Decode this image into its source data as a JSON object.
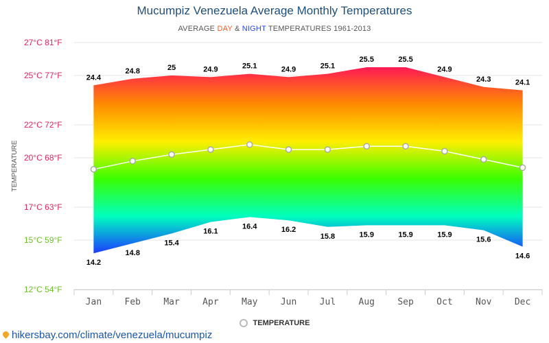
{
  "chart_data": {
    "type": "area",
    "title": "Mucumpiz Venezuela Average Monthly Temperatures",
    "subtitle": {
      "prefix": "AVERAGE",
      "day": "DAY",
      "amp": "&",
      "night": "NIGHT",
      "suffix": "TEMPERATURES 1961-2013"
    },
    "ylabel": "TEMPERATURE",
    "categories": [
      "Jan",
      "Feb",
      "Mar",
      "Apr",
      "May",
      "Jun",
      "Jul",
      "Aug",
      "Sep",
      "Oct",
      "Nov",
      "Dec"
    ],
    "ylim": [
      12,
      27
    ],
    "y_ticks": [
      {
        "value": 27,
        "label": "27°C 81°F",
        "color": "#e0245e"
      },
      {
        "value": 25,
        "label": "25°C 77°F",
        "color": "#e0245e"
      },
      {
        "value": 22,
        "label": "22°C 72°F",
        "color": "#e0245e"
      },
      {
        "value": 20,
        "label": "20°C 68°F",
        "color": "#e0245e"
      },
      {
        "value": 17,
        "label": "17°C 63°F",
        "color": "#e0245e"
      },
      {
        "value": 15,
        "label": "15°C 59°F",
        "color": "#6cbf2a"
      },
      {
        "value": 12,
        "label": "12°C 54°F",
        "color": "#6cbf2a"
      }
    ],
    "series": [
      {
        "name": "Day",
        "values": [
          24.4,
          24.8,
          25,
          24.9,
          25.1,
          24.9,
          25.1,
          25.5,
          25.5,
          24.9,
          24.3,
          24.1
        ],
        "labels": [
          "24.4",
          "24.8",
          "25",
          "24.9",
          "25.1",
          "24.9",
          "25.1",
          "25.5",
          "25.5",
          "24.9",
          "24.3",
          "24.1"
        ]
      },
      {
        "name": "Night",
        "values": [
          14.2,
          14.8,
          15.4,
          16.1,
          16.4,
          16.2,
          15.8,
          15.9,
          15.9,
          15.9,
          15.6,
          14.6
        ],
        "labels": [
          "14.2",
          "14.8",
          "15.4",
          "16.1",
          "16.4",
          "16.2",
          "15.8",
          "15.9",
          "15.9",
          "15.9",
          "15.6",
          "14.6"
        ]
      },
      {
        "name": "TEMPERATURE",
        "values": [
          19.3,
          19.8,
          20.2,
          20.5,
          20.8,
          20.5,
          20.5,
          20.7,
          20.7,
          20.4,
          19.9,
          19.4
        ]
      }
    ],
    "legend": "TEMPERATURE",
    "colors": {
      "grid": "#e6e6e6",
      "line": "#ffffff",
      "marker_stroke": "#aaaaaa",
      "axis_text": "#555555",
      "value_text": "#000000",
      "gradient": [
        "#ff1a55",
        "#ff8c00",
        "#ffee00",
        "#39ff00",
        "#00ffbf",
        "#1a3cff"
      ]
    }
  },
  "footer": {
    "text": "hikersbay.com/climate/venezuela/mucumpiz",
    "color": "#1a56b0"
  }
}
